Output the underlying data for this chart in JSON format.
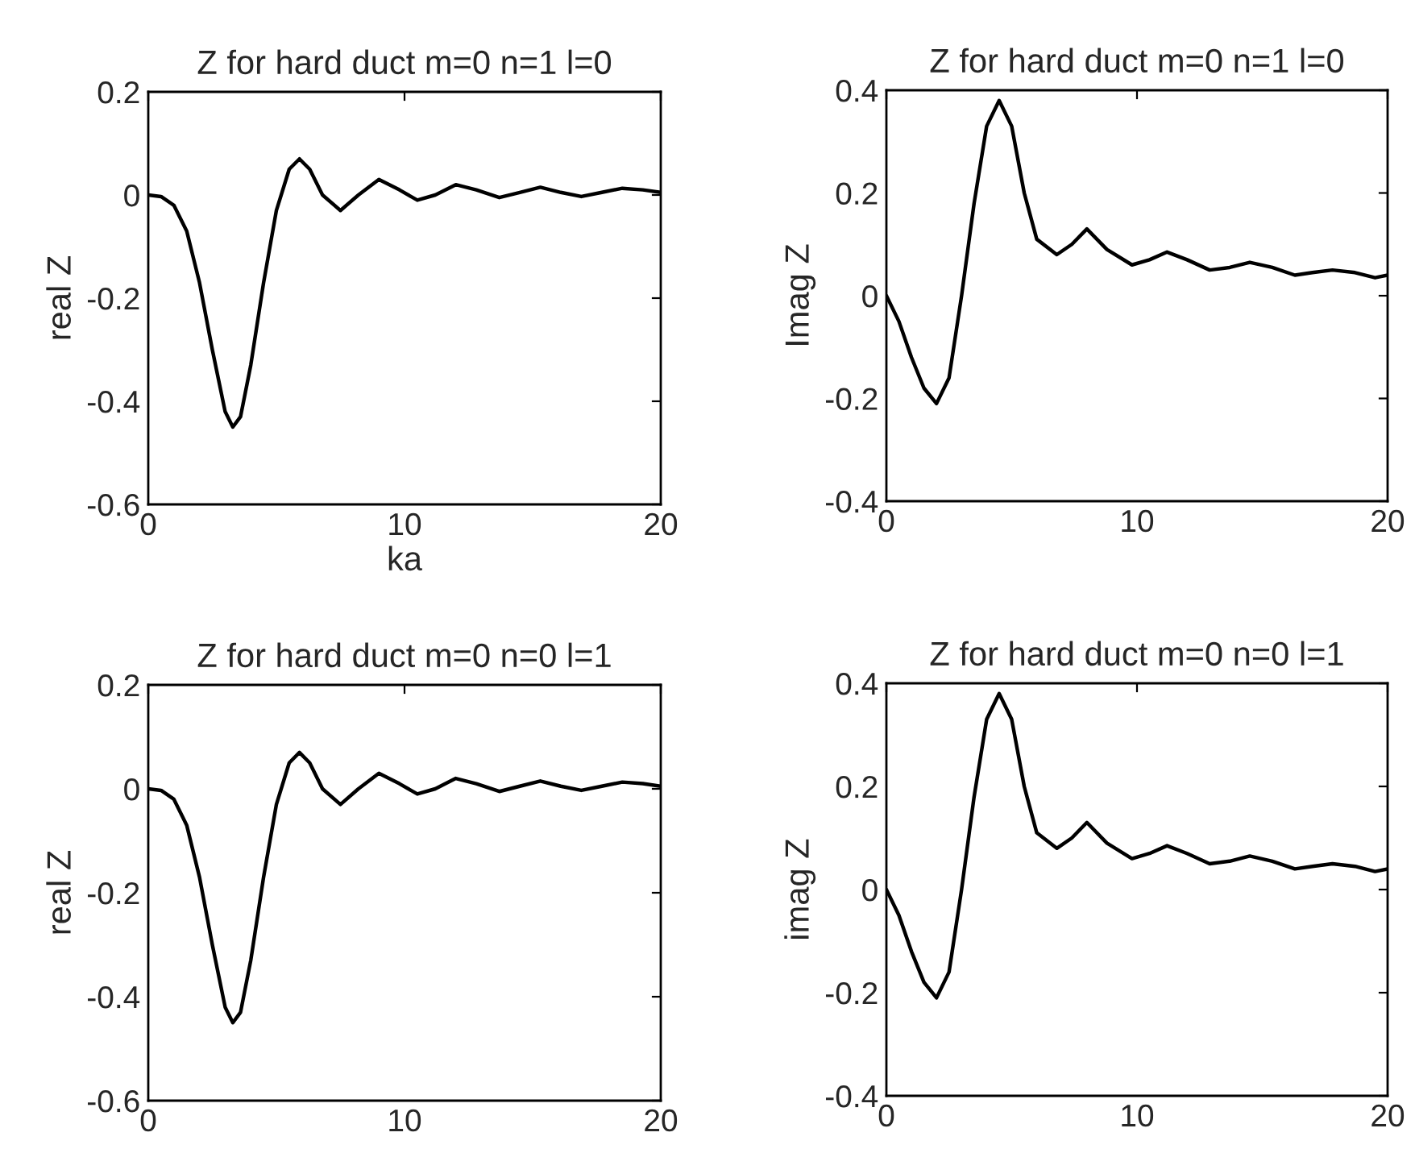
{
  "chart_data": [
    {
      "type": "line",
      "title": "Z for hard duct m=0 n=1 l=0",
      "xlabel": "ka",
      "ylabel": "real Z",
      "xlim": [
        0,
        20
      ],
      "xticks": [
        0,
        10,
        20
      ],
      "ylim": [
        -0.6,
        0.2
      ],
      "yticks": [
        -0.6,
        -0.4,
        -0.2,
        0,
        0.2
      ],
      "grid": false,
      "x": [
        0,
        0.5,
        1,
        1.5,
        2,
        2.5,
        3,
        3.3,
        3.6,
        4,
        4.5,
        5,
        5.5,
        5.9,
        6.3,
        6.8,
        7.5,
        8.2,
        9,
        9.8,
        10.5,
        11.2,
        12,
        12.8,
        13.7,
        14.5,
        15.3,
        16.1,
        16.9,
        17.7,
        18.5,
        19.3,
        20
      ],
      "series": [
        {
          "color": "#000000",
          "values": [
            0,
            -0.003,
            -0.02,
            -0.07,
            -0.17,
            -0.3,
            -0.42,
            -0.45,
            -0.43,
            -0.33,
            -0.17,
            -0.03,
            0.05,
            0.07,
            0.05,
            0.0,
            -0.03,
            0.0,
            0.03,
            0.01,
            -0.01,
            0.0,
            0.02,
            0.01,
            -0.005,
            0.005,
            0.015,
            0.005,
            -0.003,
            0.005,
            0.013,
            0.01,
            0.005
          ]
        }
      ]
    },
    {
      "type": "line",
      "title": "Z for hard duct m=0 n=1 l=0",
      "ylabel": "Imag Z",
      "xlim": [
        0,
        20
      ],
      "xticks": [
        0,
        10,
        20
      ],
      "ylim": [
        -0.4,
        0.4
      ],
      "yticks": [
        -0.4,
        -0.2,
        0,
        0.2,
        0.4
      ],
      "grid": false,
      "x": [
        0,
        0.5,
        1,
        1.5,
        2,
        2.5,
        3,
        3.5,
        4,
        4.5,
        5,
        5.5,
        6,
        6.8,
        7.4,
        8,
        8.8,
        9.8,
        10.5,
        11.2,
        12,
        12.9,
        13.7,
        14.5,
        15.4,
        16.3,
        17,
        17.8,
        18.7,
        19.5,
        20
      ],
      "series": [
        {
          "color": "#000000",
          "values": [
            0,
            -0.05,
            -0.12,
            -0.18,
            -0.21,
            -0.16,
            0.0,
            0.18,
            0.33,
            0.38,
            0.33,
            0.2,
            0.11,
            0.08,
            0.1,
            0.13,
            0.09,
            0.06,
            0.07,
            0.085,
            0.07,
            0.05,
            0.055,
            0.065,
            0.055,
            0.04,
            0.045,
            0.05,
            0.045,
            0.035,
            0.04
          ]
        }
      ]
    },
    {
      "type": "line",
      "title": "Z for hard duct m=0 n=0 l=1",
      "ylabel": "real Z",
      "xlim": [
        0,
        20
      ],
      "xticks": [
        0,
        10,
        20
      ],
      "ylim": [
        -0.6,
        0.2
      ],
      "yticks": [
        -0.6,
        -0.4,
        -0.2,
        0,
        0.2
      ],
      "grid": false,
      "x": [
        0,
        0.5,
        1,
        1.5,
        2,
        2.5,
        3,
        3.3,
        3.6,
        4,
        4.5,
        5,
        5.5,
        5.9,
        6.3,
        6.8,
        7.5,
        8.2,
        9,
        9.8,
        10.5,
        11.2,
        12,
        12.8,
        13.7,
        14.5,
        15.3,
        16.1,
        16.9,
        17.7,
        18.5,
        19.3,
        20
      ],
      "series": [
        {
          "color": "#000000",
          "values": [
            0,
            -0.003,
            -0.02,
            -0.07,
            -0.17,
            -0.3,
            -0.42,
            -0.45,
            -0.43,
            -0.33,
            -0.17,
            -0.03,
            0.05,
            0.07,
            0.05,
            0.0,
            -0.03,
            0.0,
            0.03,
            0.01,
            -0.01,
            0.0,
            0.02,
            0.01,
            -0.005,
            0.005,
            0.015,
            0.005,
            -0.003,
            0.005,
            0.013,
            0.01,
            0.005
          ]
        }
      ]
    },
    {
      "type": "line",
      "title": "Z for hard duct m=0 n=0 l=1",
      "ylabel": "imag Z",
      "xlim": [
        0,
        20
      ],
      "xticks": [
        0,
        10,
        20
      ],
      "ylim": [
        -0.4,
        0.4
      ],
      "yticks": [
        -0.4,
        -0.2,
        0,
        0.2,
        0.4
      ],
      "grid": false,
      "x": [
        0,
        0.5,
        1,
        1.5,
        2,
        2.5,
        3,
        3.5,
        4,
        4.5,
        5,
        5.5,
        6,
        6.8,
        7.4,
        8,
        8.8,
        9.8,
        10.5,
        11.2,
        12,
        12.9,
        13.7,
        14.5,
        15.4,
        16.3,
        17,
        17.8,
        18.7,
        19.5,
        20
      ],
      "series": [
        {
          "color": "#000000",
          "values": [
            0,
            -0.05,
            -0.12,
            -0.18,
            -0.21,
            -0.16,
            0.0,
            0.18,
            0.33,
            0.38,
            0.33,
            0.2,
            0.11,
            0.08,
            0.1,
            0.13,
            0.09,
            0.06,
            0.07,
            0.085,
            0.07,
            0.05,
            0.055,
            0.065,
            0.055,
            0.04,
            0.045,
            0.05,
            0.045,
            0.035,
            0.04
          ]
        }
      ]
    }
  ]
}
